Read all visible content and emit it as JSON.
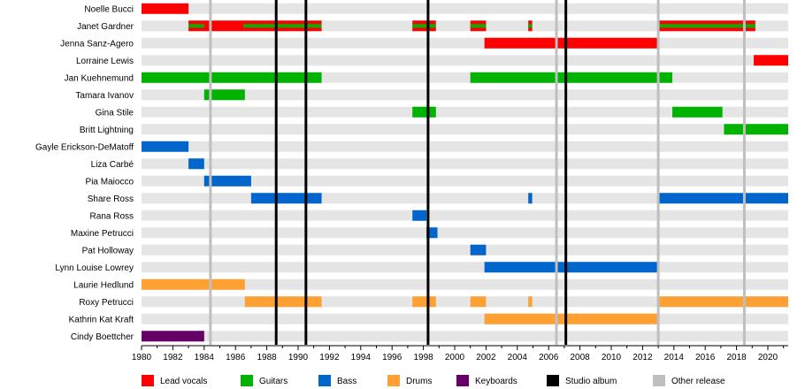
{
  "chart_data": {
    "type": "timeline",
    "title": "",
    "xlabel": "",
    "ylabel": "",
    "xlim": [
      1980,
      2021.3
    ],
    "x_ticks": [
      "1980",
      "1982",
      "1984",
      "1986",
      "1988",
      "1990",
      "1992",
      "1994",
      "1996",
      "1998",
      "2000",
      "2002",
      "2004",
      "2006",
      "2008",
      "2010",
      "2012",
      "2014",
      "2016",
      "2018",
      "2020"
    ],
    "colors": {
      "vocals": "#ff0000",
      "guitars": "#00b300",
      "bass": "#0066cc",
      "drums": "#ffa033",
      "keyboards": "#660066",
      "studio": "#000000",
      "other": "#bfbfbf",
      "row_band": "#e5e5e5"
    },
    "legend": [
      {
        "key": "vocals",
        "label": "Lead vocals"
      },
      {
        "key": "guitars",
        "label": "Guitars"
      },
      {
        "key": "bass",
        "label": "Bass"
      },
      {
        "key": "drums",
        "label": "Drums"
      },
      {
        "key": "keyboards",
        "label": "Keyboards"
      },
      {
        "key": "studio",
        "label": "Studio album"
      },
      {
        "key": "other",
        "label": "Other release"
      }
    ],
    "studio_albums": [
      1988.6,
      1990.5,
      1998.3,
      2007.1
    ],
    "other_releases": [
      1984.4,
      2006.5,
      2013.0,
      2018.5
    ],
    "members": [
      {
        "name": "Noelle Bucci",
        "bars": [
          {
            "role": "vocals",
            "start": 1980,
            "end": 1983
          }
        ]
      },
      {
        "name": "Janet Gardner",
        "bars": [
          {
            "role": "vocals",
            "start": 1983,
            "end": 1991.5,
            "stripe": "guitars",
            "stripe_start": 1983,
            "stripe_end": 1984,
            "stripe2_start": 1986.5,
            "stripe2_end": 1991.5
          },
          {
            "role": "vocals",
            "start": 1997.3,
            "end": 1998.8,
            "stripe": "guitars"
          },
          {
            "role": "vocals",
            "start": 2001,
            "end": 2002,
            "stripe": "guitars"
          },
          {
            "role": "vocals",
            "start": 2004.7,
            "end": 2004.95,
            "stripe": "guitars"
          },
          {
            "role": "vocals",
            "start": 2013,
            "end": 2019.2,
            "stripe": "guitars"
          }
        ]
      },
      {
        "name": "Jenna Sanz-Agero",
        "bars": [
          {
            "role": "vocals",
            "start": 2001.9,
            "end": 2013
          }
        ]
      },
      {
        "name": "Lorraine Lewis",
        "bars": [
          {
            "role": "vocals",
            "start": 2019.1,
            "end": 2021.3
          }
        ]
      },
      {
        "name": "Jan Kuehnemund",
        "bars": [
          {
            "role": "guitars",
            "start": 1980,
            "end": 1991.5
          },
          {
            "role": "guitars",
            "start": 2001,
            "end": 2013.9
          }
        ]
      },
      {
        "name": "Tamara Ivanov",
        "bars": [
          {
            "role": "guitars",
            "start": 1984,
            "end": 1986.6
          }
        ]
      },
      {
        "name": "Gina Stile",
        "bars": [
          {
            "role": "guitars",
            "start": 1997.3,
            "end": 1998.8
          },
          {
            "role": "guitars",
            "start": 2013.9,
            "end": 2017.1
          }
        ]
      },
      {
        "name": "Britt Lightning",
        "bars": [
          {
            "role": "guitars",
            "start": 2017.2,
            "end": 2021.3
          }
        ]
      },
      {
        "name": "Gayle Erickson-DeMatoff",
        "bars": [
          {
            "role": "bass",
            "start": 1980,
            "end": 1983
          }
        ]
      },
      {
        "name": "Liza Carbé",
        "bars": [
          {
            "role": "bass",
            "start": 1983,
            "end": 1984
          }
        ]
      },
      {
        "name": "Pia Maiocco",
        "bars": [
          {
            "role": "bass",
            "start": 1984,
            "end": 1987
          }
        ]
      },
      {
        "name": "Share Ross",
        "bars": [
          {
            "role": "bass",
            "start": 1987,
            "end": 1991.5
          },
          {
            "role": "bass",
            "start": 2004.7,
            "end": 2004.95
          },
          {
            "role": "bass",
            "start": 2013,
            "end": 2021.3
          }
        ]
      },
      {
        "name": "Rana Ross",
        "bars": [
          {
            "role": "bass",
            "start": 1997.3,
            "end": 1998.2
          }
        ]
      },
      {
        "name": "Maxine Petrucci",
        "bars": [
          {
            "role": "bass",
            "start": 1998.2,
            "end": 1998.9
          }
        ]
      },
      {
        "name": "Pat Holloway",
        "bars": [
          {
            "role": "bass",
            "start": 2001,
            "end": 2002
          }
        ]
      },
      {
        "name": "Lynn Louise Lowrey",
        "bars": [
          {
            "role": "bass",
            "start": 2001.9,
            "end": 2013
          }
        ]
      },
      {
        "name": "Laurie Hedlund",
        "bars": [
          {
            "role": "drums",
            "start": 1980,
            "end": 1986.6
          }
        ]
      },
      {
        "name": "Roxy Petrucci",
        "bars": [
          {
            "role": "drums",
            "start": 1986.6,
            "end": 1991.5
          },
          {
            "role": "drums",
            "start": 1997.3,
            "end": 1998.8
          },
          {
            "role": "drums",
            "start": 2001,
            "end": 2002
          },
          {
            "role": "drums",
            "start": 2004.7,
            "end": 2004.95
          },
          {
            "role": "drums",
            "start": 2013,
            "end": 2021.3
          }
        ]
      },
      {
        "name": "Kathrin Kat Kraft",
        "bars": [
          {
            "role": "drums",
            "start": 2001.9,
            "end": 2013
          }
        ]
      },
      {
        "name": "Cindy Boettcher",
        "bars": [
          {
            "role": "keyboards",
            "start": 1980,
            "end": 1984
          }
        ]
      }
    ]
  }
}
